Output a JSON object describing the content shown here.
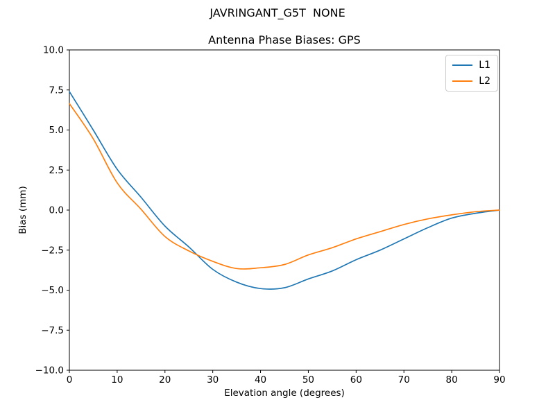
{
  "figure": {
    "title": "JAVRINGANT_G5T  NONE",
    "background": "#ffffff",
    "text_color": "#000000"
  },
  "chart_data": {
    "type": "line",
    "title": "Antenna Phase Biases: GPS",
    "xlabel": "Elevation angle (degrees)",
    "ylabel": "Bias (mm)",
    "xlim": [
      0,
      90
    ],
    "ylim": [
      -10.0,
      10.0
    ],
    "xticks": [
      0,
      10,
      20,
      30,
      40,
      50,
      60,
      70,
      80,
      90
    ],
    "yticks": [
      -10.0,
      -7.5,
      -5.0,
      -2.5,
      0.0,
      2.5,
      5.0,
      7.5,
      10.0
    ],
    "ytick_labels": [
      "−10.0",
      "−7.5",
      "−5.0",
      "−2.5",
      "0.0",
      "2.5",
      "5.0",
      "7.5",
      "10.0"
    ],
    "grid": false,
    "legend_position": "upper right",
    "x": [
      0,
      5,
      10,
      15,
      20,
      25,
      30,
      35,
      40,
      45,
      50,
      55,
      60,
      65,
      70,
      75,
      80,
      85,
      90
    ],
    "series": [
      {
        "name": "L1",
        "color": "#1f77b4",
        "values": [
          7.4,
          5.0,
          2.55,
          0.8,
          -1.0,
          -2.3,
          -3.7,
          -4.5,
          -4.9,
          -4.85,
          -4.3,
          -3.8,
          -3.1,
          -2.5,
          -1.8,
          -1.1,
          -0.5,
          -0.2,
          0.0
        ]
      },
      {
        "name": "L2",
        "color": "#ff7f0e",
        "values": [
          6.65,
          4.45,
          1.7,
          0.05,
          -1.65,
          -2.55,
          -3.2,
          -3.65,
          -3.6,
          -3.4,
          -2.8,
          -2.35,
          -1.8,
          -1.35,
          -0.9,
          -0.55,
          -0.3,
          -0.1,
          0.0
        ]
      }
    ]
  }
}
